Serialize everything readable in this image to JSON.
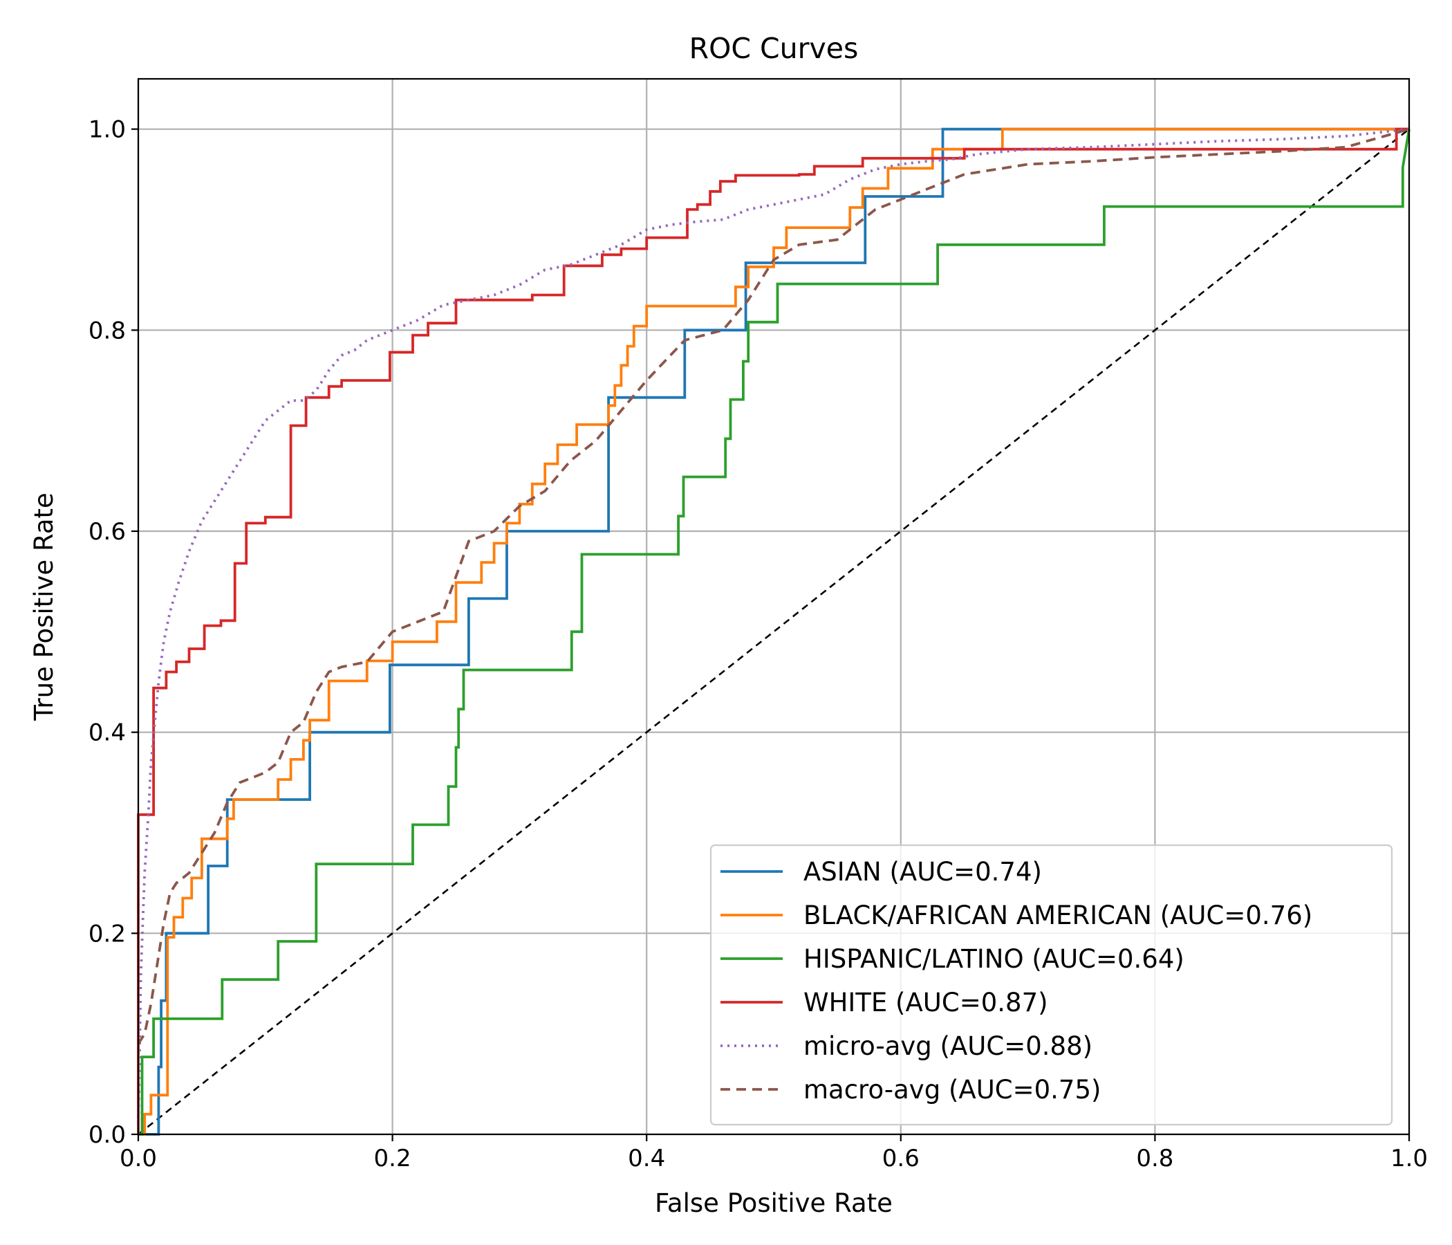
{
  "chart_data": {
    "type": "line",
    "title": "ROC Curves",
    "xlabel": "False Positive Rate",
    "ylabel": "True Positive Rate",
    "xlim": [
      0,
      1
    ],
    "ylim": [
      0,
      1.05
    ],
    "xticks": [
      "0.0",
      "0.2",
      "0.4",
      "0.6",
      "0.8",
      "1.0"
    ],
    "yticks": [
      "0.0",
      "0.2",
      "0.4",
      "0.6",
      "0.8",
      "1.0"
    ],
    "grid": true,
    "legend_position": "lower right",
    "reference_line": {
      "style": "dashed",
      "color": "#000000",
      "x": [
        0,
        1
      ],
      "y": [
        0,
        1
      ]
    },
    "series": [
      {
        "name": "ASIAN (AUC=0.74)",
        "color": "#1f77b4",
        "style": "solid",
        "x": [
          0,
          0.016,
          0.016,
          0.018,
          0.018,
          0.022,
          0.022,
          0.025,
          0.025,
          0.055,
          0.055,
          0.07,
          0.07,
          0.11,
          0.11,
          0.135,
          0.135,
          0.198,
          0.198,
          0.26,
          0.26,
          0.29,
          0.29,
          0.37,
          0.37,
          0.43,
          0.43,
          0.478,
          0.478,
          0.572,
          0.572,
          0.633,
          0.633,
          0.68,
          1.0
        ],
        "y": [
          0,
          0,
          0.067,
          0.067,
          0.133,
          0.133,
          0.2,
          0.2,
          0.2,
          0.2,
          0.267,
          0.267,
          0.333,
          0.333,
          0.333,
          0.333,
          0.4,
          0.4,
          0.467,
          0.467,
          0.533,
          0.533,
          0.6,
          0.6,
          0.733,
          0.733,
          0.8,
          0.8,
          0.867,
          0.867,
          0.933,
          0.933,
          1.0,
          1.0,
          1.0
        ]
      },
      {
        "name": "BLACK/AFRICAN AMERICAN (AUC=0.76)",
        "color": "#ff7f0e",
        "style": "solid",
        "x": [
          0,
          0.005,
          0.005,
          0.01,
          0.01,
          0.023,
          0.023,
          0.028,
          0.028,
          0.035,
          0.035,
          0.042,
          0.042,
          0.05,
          0.05,
          0.07,
          0.07,
          0.075,
          0.075,
          0.11,
          0.11,
          0.12,
          0.12,
          0.13,
          0.13,
          0.135,
          0.135,
          0.15,
          0.15,
          0.15,
          0.18,
          0.18,
          0.2,
          0.2,
          0.235,
          0.235,
          0.25,
          0.25,
          0.25,
          0.27,
          0.27,
          0.28,
          0.28,
          0.29,
          0.29,
          0.3,
          0.3,
          0.31,
          0.31,
          0.32,
          0.32,
          0.33,
          0.33,
          0.34,
          0.34,
          0.345,
          0.345,
          0.37,
          0.37,
          0.375,
          0.375,
          0.38,
          0.38,
          0.385,
          0.385,
          0.39,
          0.39,
          0.395,
          0.395,
          0.4,
          0.4,
          0.47,
          0.47,
          0.48,
          0.48,
          0.49,
          0.49,
          0.5,
          0.5,
          0.51,
          0.51,
          0.56,
          0.56,
          0.57,
          0.57,
          0.59,
          0.59,
          0.625,
          0.625,
          0.68,
          0.68,
          0.99,
          0.99,
          1.0
        ],
        "y": [
          0,
          0,
          0.02,
          0.02,
          0.039,
          0.039,
          0.196,
          0.196,
          0.216,
          0.216,
          0.235,
          0.235,
          0.255,
          0.255,
          0.294,
          0.294,
          0.314,
          0.314,
          0.333,
          0.333,
          0.353,
          0.353,
          0.373,
          0.373,
          0.392,
          0.392,
          0.412,
          0.412,
          0.431,
          0.451,
          0.451,
          0.471,
          0.471,
          0.49,
          0.49,
          0.51,
          0.51,
          0.53,
          0.549,
          0.549,
          0.569,
          0.569,
          0.588,
          0.588,
          0.608,
          0.608,
          0.627,
          0.627,
          0.647,
          0.647,
          0.667,
          0.667,
          0.686,
          0.686,
          0.686,
          0.686,
          0.706,
          0.706,
          0.725,
          0.725,
          0.745,
          0.745,
          0.765,
          0.765,
          0.784,
          0.784,
          0.804,
          0.804,
          0.804,
          0.804,
          0.824,
          0.824,
          0.843,
          0.843,
          0.863,
          0.863,
          0.863,
          0.863,
          0.882,
          0.882,
          0.902,
          0.902,
          0.922,
          0.922,
          0.941,
          0.941,
          0.961,
          0.961,
          0.98,
          0.98,
          1.0,
          1.0,
          1.0,
          1.0
        ]
      },
      {
        "name": "HISPANIC/LATINO (AUC=0.64)",
        "color": "#2ca02c",
        "style": "solid",
        "x": [
          0,
          0.003,
          0.003,
          0.012,
          0.012,
          0.066,
          0.066,
          0.11,
          0.11,
          0.14,
          0.14,
          0.216,
          0.216,
          0.244,
          0.244,
          0.25,
          0.25,
          0.252,
          0.252,
          0.256,
          0.256,
          0.341,
          0.341,
          0.349,
          0.349,
          0.425,
          0.425,
          0.429,
          0.429,
          0.462,
          0.462,
          0.466,
          0.466,
          0.476,
          0.476,
          0.48,
          0.48,
          0.484,
          0.484,
          0.503,
          0.503,
          0.629,
          0.629,
          0.76,
          0.76,
          0.995,
          0.995,
          1.0
        ],
        "y": [
          0,
          0,
          0.077,
          0.077,
          0.115,
          0.115,
          0.154,
          0.154,
          0.192,
          0.192,
          0.269,
          0.269,
          0.308,
          0.308,
          0.346,
          0.346,
          0.385,
          0.385,
          0.423,
          0.423,
          0.462,
          0.462,
          0.5,
          0.5,
          0.577,
          0.577,
          0.615,
          0.615,
          0.654,
          0.654,
          0.692,
          0.692,
          0.731,
          0.731,
          0.769,
          0.769,
          0.808,
          0.808,
          0.808,
          0.808,
          0.846,
          0.846,
          0.885,
          0.885,
          0.923,
          0.923,
          0.962,
          1.0
        ]
      },
      {
        "name": "WHITE (AUC=0.87)",
        "color": "#d62728",
        "style": "solid",
        "x": [
          0,
          0,
          0.012,
          0.012,
          0.022,
          0.022,
          0.03,
          0.03,
          0.04,
          0.04,
          0.052,
          0.052,
          0.065,
          0.065,
          0.076,
          0.076,
          0.085,
          0.085,
          0.1,
          0.1,
          0.12,
          0.12,
          0.132,
          0.132,
          0.15,
          0.15,
          0.16,
          0.16,
          0.18,
          0.18,
          0.198,
          0.198,
          0.216,
          0.216,
          0.228,
          0.228,
          0.25,
          0.25,
          0.31,
          0.31,
          0.335,
          0.335,
          0.365,
          0.365,
          0.38,
          0.38,
          0.4,
          0.4,
          0.432,
          0.432,
          0.44,
          0.44,
          0.45,
          0.45,
          0.458,
          0.458,
          0.47,
          0.47,
          0.52,
          0.52,
          0.532,
          0.532,
          0.57,
          0.57,
          0.65,
          0.65,
          0.99,
          0.99,
          1.0
        ],
        "y": [
          0,
          0.318,
          0.318,
          0.444,
          0.444,
          0.46,
          0.46,
          0.47,
          0.47,
          0.483,
          0.483,
          0.506,
          0.506,
          0.511,
          0.511,
          0.568,
          0.568,
          0.608,
          0.608,
          0.614,
          0.614,
          0.705,
          0.705,
          0.733,
          0.733,
          0.744,
          0.744,
          0.75,
          0.75,
          0.75,
          0.75,
          0.778,
          0.778,
          0.795,
          0.795,
          0.807,
          0.807,
          0.83,
          0.83,
          0.835,
          0.835,
          0.864,
          0.864,
          0.875,
          0.875,
          0.881,
          0.881,
          0.892,
          0.892,
          0.92,
          0.92,
          0.925,
          0.925,
          0.938,
          0.938,
          0.948,
          0.948,
          0.954,
          0.954,
          0.955,
          0.955,
          0.963,
          0.963,
          0.971,
          0.971,
          0.98,
          0.98,
          1.0,
          1.0
        ]
      },
      {
        "name": "micro-avg (AUC=0.88)",
        "color": "#9467bd",
        "style": "dotted",
        "x": [
          0,
          0.002,
          0.005,
          0.008,
          0.01,
          0.013,
          0.016,
          0.02,
          0.025,
          0.032,
          0.04,
          0.05,
          0.06,
          0.07,
          0.08,
          0.09,
          0.1,
          0.11,
          0.12,
          0.13,
          0.14,
          0.15,
          0.16,
          0.17,
          0.18,
          0.19,
          0.2,
          0.22,
          0.24,
          0.26,
          0.28,
          0.3,
          0.32,
          0.34,
          0.36,
          0.38,
          0.4,
          0.42,
          0.44,
          0.46,
          0.48,
          0.5,
          0.52,
          0.54,
          0.56,
          0.58,
          0.6,
          0.62,
          0.64,
          0.66,
          0.7,
          0.75,
          0.8,
          0.85,
          0.9,
          0.95,
          1.0
        ],
        "y": [
          0,
          0.16,
          0.26,
          0.32,
          0.37,
          0.41,
          0.45,
          0.49,
          0.52,
          0.55,
          0.58,
          0.61,
          0.63,
          0.65,
          0.67,
          0.69,
          0.71,
          0.72,
          0.73,
          0.73,
          0.74,
          0.76,
          0.775,
          0.78,
          0.79,
          0.795,
          0.8,
          0.81,
          0.825,
          0.83,
          0.835,
          0.845,
          0.86,
          0.865,
          0.875,
          0.885,
          0.9,
          0.905,
          0.908,
          0.91,
          0.92,
          0.925,
          0.93,
          0.935,
          0.95,
          0.96,
          0.965,
          0.968,
          0.97,
          0.975,
          0.98,
          0.982,
          0.985,
          0.988,
          0.99,
          0.993,
          1.0
        ]
      },
      {
        "name": "macro-avg (AUC=0.75)",
        "color": "#8c564b",
        "style": "dashed",
        "x": [
          0,
          0.005,
          0.01,
          0.015,
          0.02,
          0.025,
          0.03,
          0.04,
          0.05,
          0.06,
          0.07,
          0.08,
          0.09,
          0.1,
          0.11,
          0.12,
          0.13,
          0.14,
          0.15,
          0.16,
          0.18,
          0.2,
          0.22,
          0.24,
          0.26,
          0.28,
          0.3,
          0.32,
          0.34,
          0.36,
          0.38,
          0.4,
          0.43,
          0.46,
          0.48,
          0.5,
          0.52,
          0.55,
          0.58,
          0.6,
          0.63,
          0.65,
          0.7,
          0.75,
          0.8,
          0.85,
          0.9,
          0.95,
          1.0
        ],
        "y": [
          0.09,
          0.1,
          0.13,
          0.17,
          0.21,
          0.24,
          0.25,
          0.26,
          0.28,
          0.3,
          0.33,
          0.35,
          0.355,
          0.36,
          0.37,
          0.4,
          0.41,
          0.44,
          0.46,
          0.465,
          0.47,
          0.5,
          0.51,
          0.52,
          0.59,
          0.6,
          0.625,
          0.64,
          0.67,
          0.69,
          0.72,
          0.75,
          0.79,
          0.8,
          0.83,
          0.87,
          0.885,
          0.89,
          0.92,
          0.93,
          0.945,
          0.955,
          0.965,
          0.968,
          0.972,
          0.975,
          0.978,
          0.982,
          1.0
        ]
      }
    ]
  }
}
